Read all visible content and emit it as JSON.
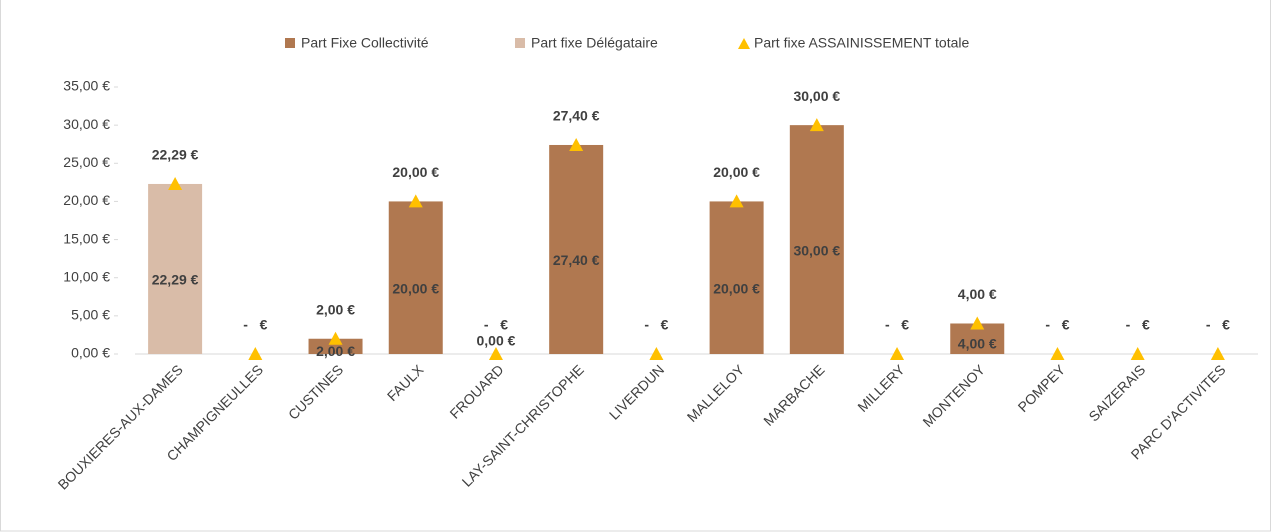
{
  "chart_data": {
    "type": "bar",
    "stacked": true,
    "categories": [
      "BOUXIERES-AUX-DAMES",
      "CHAMPIGNEULLES",
      "CUSTINES",
      "FAULX",
      "FROUARD",
      "LAY-SAINT-CHRISTOPHE",
      "LIVERDUN",
      "MALLELOY",
      "MARBACHE",
      "MILLERY",
      "MONTENOY",
      "POMPEY",
      "SAIZERAIS",
      "PARC D'ACTIVITES"
    ],
    "series": [
      {
        "name": "Part Fixe Collectivité",
        "color": "#b07850",
        "values": [
          0,
          0,
          2,
          20,
          0,
          27.4,
          0,
          20,
          30,
          0,
          4,
          0,
          0,
          0
        ],
        "value_labels": [
          null,
          null,
          "2,00 €",
          "20,00 €",
          null,
          "27,40 €",
          null,
          "20,00 €",
          "30,00 €",
          null,
          "4,00 €",
          null,
          null,
          null
        ]
      },
      {
        "name": "Part fixe Délégataire",
        "color": "#d9bca8",
        "values": [
          22.29,
          0,
          0,
          0,
          0,
          0,
          0,
          0,
          0,
          0,
          0,
          0,
          0,
          0
        ],
        "value_labels": [
          "22,29 €",
          null,
          null,
          null,
          "0,00 €",
          null,
          null,
          null,
          null,
          null,
          null,
          null,
          null,
          null
        ]
      },
      {
        "name": "Part fixe ASSAINISSEMENT totale",
        "type": "scatter",
        "marker": "triangle",
        "color": "#ffc000",
        "values": [
          22.29,
          0,
          2,
          20,
          0,
          27.4,
          0,
          20,
          30,
          0,
          4,
          0,
          0,
          0
        ],
        "value_labels": [
          "22,29 €",
          "-   €",
          "2,00 €",
          "20,00 €",
          "-   €",
          "27,40 €",
          "-   €",
          "20,00 €",
          "30,00 €",
          "-   €",
          "4,00 €",
          "-   €",
          "-   €",
          "-   €"
        ]
      }
    ],
    "ylim": [
      0,
      35
    ],
    "yticks": [
      {
        "value": 0,
        "label": "0,00 €"
      },
      {
        "value": 5,
        "label": "5,00 €"
      },
      {
        "value": 10,
        "label": "10,00 €"
      },
      {
        "value": 15,
        "label": "15,00 €"
      },
      {
        "value": 20,
        "label": "20,00 €"
      },
      {
        "value": 25,
        "label": "25,00 €"
      },
      {
        "value": 30,
        "label": "30,00 €"
      },
      {
        "value": 35,
        "label": "35,00 €"
      }
    ],
    "legend": "top"
  }
}
